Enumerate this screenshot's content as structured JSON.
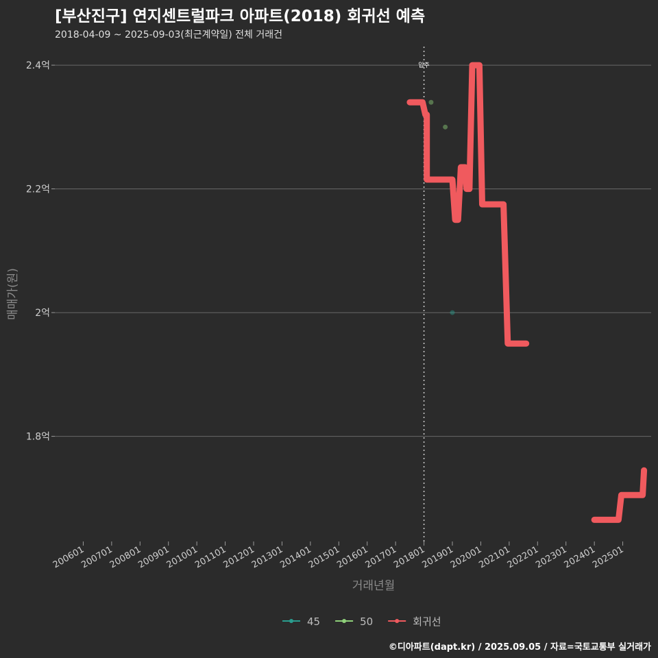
{
  "header": {
    "title": "[부산진구] 연지센트럴파크 아파트(2018) 회귀선 예측",
    "subtitle": "2018-04-09 ~ 2025-09-03(최근계약일) 전체 거래건"
  },
  "credit": "©디아파트(dapt.kr) / 2025.09.05 / 자료=국토교통부 실거래가",
  "chart_data": {
    "type": "line",
    "title": "[부산진구] 연지센트럴파크 아파트(2018) 회귀선 예측",
    "subtitle": "2018-04-09 ~ 2025-09-03(최근계약일) 전체 거래건",
    "xlabel": "거래년월",
    "ylabel": "매매가(원)",
    "x_range": [
      2005.0,
      2026.0
    ],
    "ylim": [
      1.63,
      2.43
    ],
    "y_ticks": [
      {
        "value": 1.8,
        "label": "1.8억"
      },
      {
        "value": 2.0,
        "label": "2억"
      },
      {
        "value": 2.2,
        "label": "2.2억"
      },
      {
        "value": 2.4,
        "label": "2.4억"
      }
    ],
    "x_ticks": [
      {
        "value": 2006,
        "label": "200601"
      },
      {
        "value": 2007,
        "label": "200701"
      },
      {
        "value": 2008,
        "label": "200801"
      },
      {
        "value": 2009,
        "label": "200901"
      },
      {
        "value": 2010,
        "label": "201001"
      },
      {
        "value": 2011,
        "label": "201101"
      },
      {
        "value": 2012,
        "label": "201201"
      },
      {
        "value": 2013,
        "label": "201301"
      },
      {
        "value": 2014,
        "label": "201401"
      },
      {
        "value": 2015,
        "label": "201501"
      },
      {
        "value": 2016,
        "label": "201601"
      },
      {
        "value": 2017,
        "label": "201701"
      },
      {
        "value": 2018,
        "label": "201801"
      },
      {
        "value": 2019,
        "label": "201901"
      },
      {
        "value": 2020,
        "label": "202001"
      },
      {
        "value": 2021,
        "label": "202101"
      },
      {
        "value": 2022,
        "label": "202201"
      },
      {
        "value": 2023,
        "label": "202301"
      },
      {
        "value": 2024,
        "label": "202401"
      },
      {
        "value": 2025,
        "label": "202501"
      }
    ],
    "vline": {
      "x": 2018.0,
      "label": "입주"
    },
    "series": [
      {
        "name": "45",
        "kind": "points",
        "color": "#2a9d8f",
        "points": [
          [
            2019.0,
            2.0
          ]
        ]
      },
      {
        "name": "50",
        "kind": "points",
        "color": "#8fd17a",
        "points": [
          [
            2018.25,
            2.34
          ],
          [
            2018.75,
            2.3
          ]
        ]
      },
      {
        "name": "회귀선",
        "kind": "line",
        "color": "#f05a5e",
        "points": [
          [
            2017.5,
            2.34
          ],
          [
            2017.95,
            2.34
          ],
          [
            2018.05,
            2.32
          ],
          [
            2018.1,
            2.32
          ],
          [
            2018.1,
            2.215
          ],
          [
            2019.0,
            2.215
          ],
          [
            2019.1,
            2.15
          ],
          [
            2019.2,
            2.15
          ],
          [
            2019.3,
            2.235
          ],
          [
            2019.45,
            2.235
          ],
          [
            2019.5,
            2.2
          ],
          [
            2019.6,
            2.2
          ],
          [
            2019.7,
            2.4
          ],
          [
            2019.95,
            2.4
          ],
          [
            2020.05,
            2.175
          ],
          [
            2020.8,
            2.175
          ],
          [
            2020.95,
            1.95
          ],
          [
            2021.6,
            1.95
          ]
        ]
      },
      {
        "name": "회귀선",
        "kind": "line",
        "color": "#f05a5e",
        "legend": false,
        "points": [
          [
            2024.0,
            1.665
          ],
          [
            2024.85,
            1.665
          ],
          [
            2024.95,
            1.705
          ],
          [
            2025.7,
            1.705
          ],
          [
            2025.75,
            1.745
          ]
        ]
      }
    ],
    "legend": {
      "position": "bottom",
      "items": [
        "45",
        "50",
        "회귀선"
      ]
    },
    "grid": true
  }
}
